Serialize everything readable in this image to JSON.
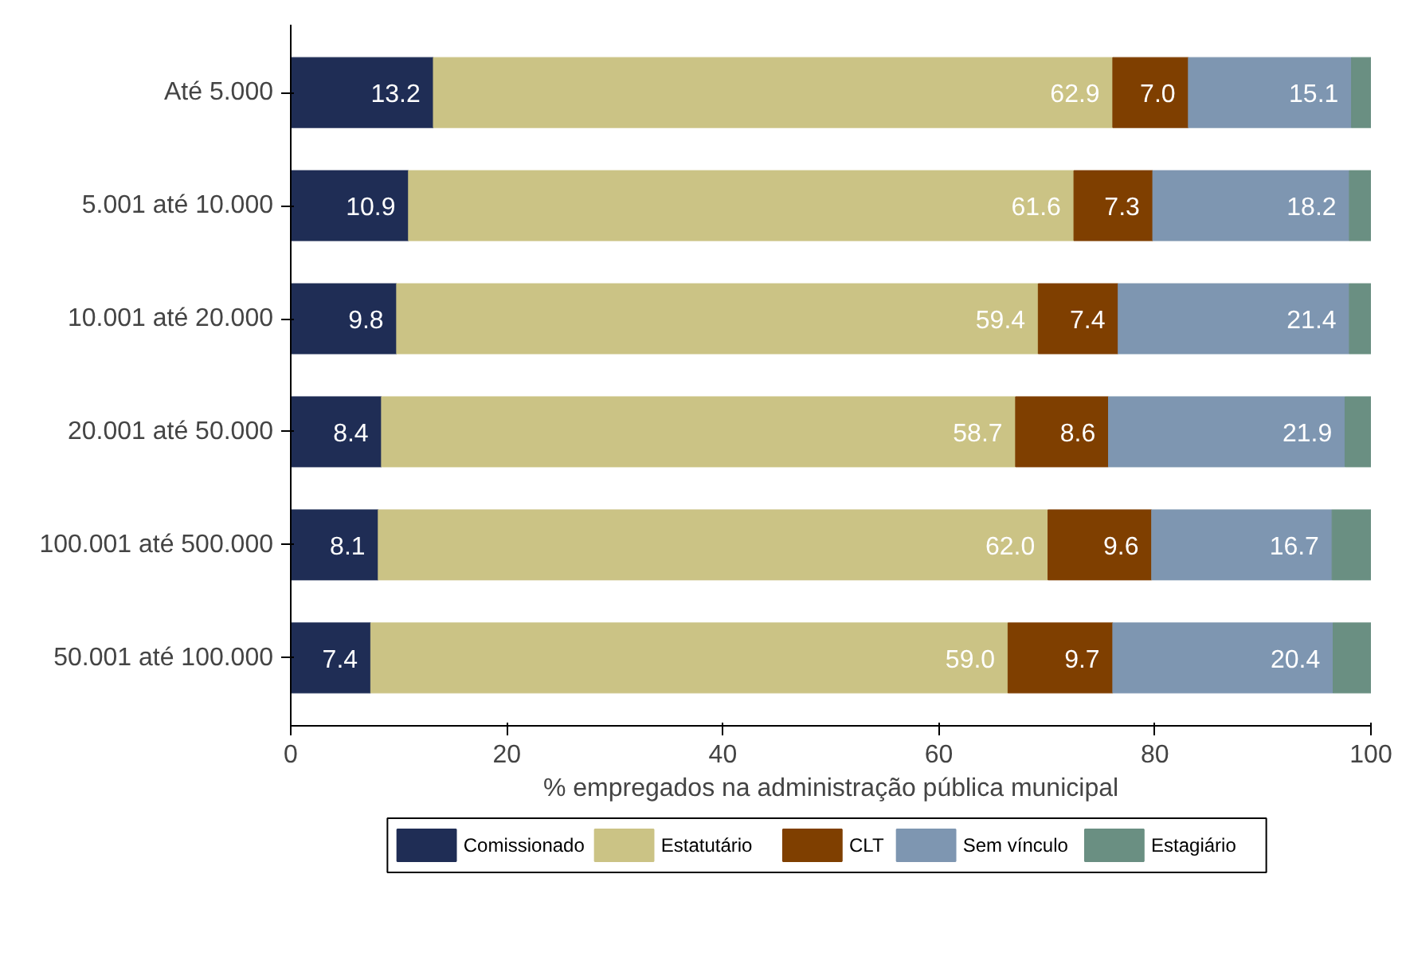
{
  "chart_data": {
    "type": "bar",
    "orientation": "horizontal",
    "stacked": true,
    "xlabel": "% empregados na administração pública municipal",
    "categories": [
      "Até 5.000",
      "5.001 até 10.000",
      "10.001 até 20.000",
      "20.001 até 50.000",
      "100.001 até 500.000",
      "50.001 até 100.000"
    ],
    "xlim": [
      0,
      100
    ],
    "xticks": [
      0,
      20,
      40,
      60,
      80,
      100
    ],
    "legend": "bottom",
    "series": [
      {
        "name": "Comissionado",
        "color": "#1f2d55",
        "values": [
          13.2,
          10.9,
          9.8,
          8.4,
          8.1,
          7.4
        ],
        "value_labels": [
          "13.2",
          "10.9",
          "9.8",
          "8.4",
          "8.1",
          "7.4"
        ]
      },
      {
        "name": "Estatutário",
        "color": "#cbc385",
        "values": [
          62.9,
          61.6,
          59.4,
          58.7,
          62.0,
          59.0
        ],
        "value_labels": [
          "62.9",
          "61.6",
          "59.4",
          "58.7",
          "62.0",
          "59.0"
        ]
      },
      {
        "name": "CLT",
        "color": "#7f3f00",
        "values": [
          7.0,
          7.3,
          7.4,
          8.6,
          9.6,
          9.7
        ],
        "value_labels": [
          "7.0",
          "7.3",
          "7.4",
          "8.6",
          "9.6",
          "9.7"
        ]
      },
      {
        "name": "Sem vínculo",
        "color": "#7e96b1",
        "values": [
          15.1,
          18.2,
          21.4,
          21.9,
          16.7,
          20.4
        ],
        "value_labels": [
          "15.1",
          "18.2",
          "21.4",
          "21.9",
          "16.7",
          "20.4"
        ]
      },
      {
        "name": "Estagiário",
        "color": "#6a8f82",
        "values": [
          1.8,
          2.0,
          2.0,
          2.4,
          3.6,
          3.5
        ],
        "value_labels": [
          null,
          null,
          null,
          null,
          null,
          null
        ]
      }
    ]
  }
}
